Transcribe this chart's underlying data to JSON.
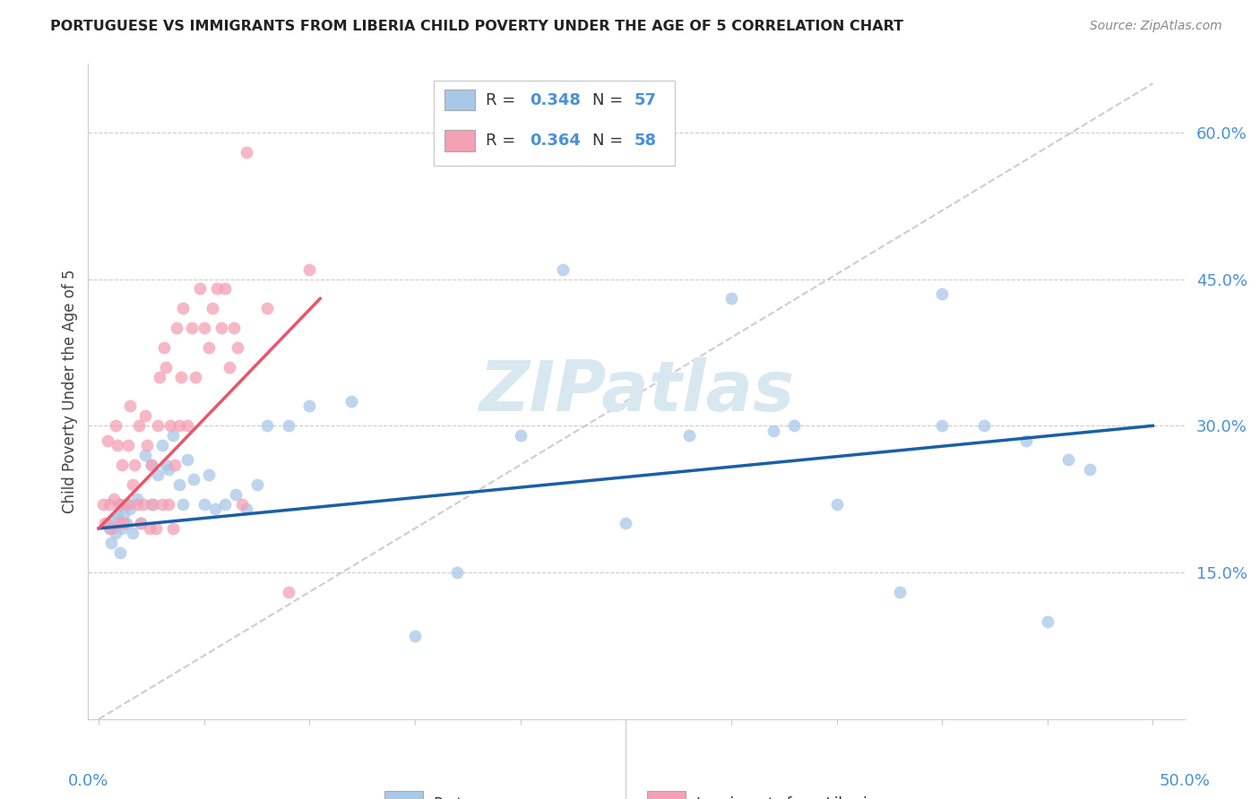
{
  "title": "PORTUGUESE VS IMMIGRANTS FROM LIBERIA CHILD POVERTY UNDER THE AGE OF 5 CORRELATION CHART",
  "source": "Source: ZipAtlas.com",
  "ylabel": "Child Poverty Under the Age of 5",
  "color_blue": "#a8c8e8",
  "color_pink": "#f4a0b5",
  "color_blue_line": "#1a5fa8",
  "color_pink_line": "#e8566a",
  "color_diag": "#c8c8c8",
  "color_axis_blue": "#4a90d9",
  "watermark_color": "#d8e8f0",
  "portuguese_x": [
    0.4,
    0.5,
    0.6,
    0.7,
    0.8,
    0.9,
    1.0,
    1.0,
    1.1,
    1.2,
    1.3,
    1.4,
    1.5,
    1.6,
    1.8,
    2.0,
    2.2,
    2.5,
    2.5,
    2.8,
    3.0,
    3.2,
    3.3,
    3.5,
    3.8,
    4.0,
    4.2,
    4.5,
    5.0,
    5.2,
    5.5,
    6.0,
    6.5,
    7.0,
    7.5,
    8.0,
    9.0,
    10.0,
    12.0,
    15.0,
    17.0,
    20.0,
    22.0,
    25.0,
    28.0,
    30.0,
    32.0,
    33.0,
    35.0,
    38.0,
    40.0,
    40.0,
    42.0,
    44.0,
    45.0,
    46.0,
    47.0
  ],
  "portuguese_y": [
    20.0,
    19.5,
    18.0,
    20.5,
    19.0,
    21.0,
    17.0,
    22.0,
    19.5,
    21.0,
    20.0,
    22.0,
    21.5,
    19.0,
    22.5,
    20.0,
    27.0,
    26.0,
    22.0,
    25.0,
    28.0,
    26.0,
    25.5,
    29.0,
    24.0,
    22.0,
    26.5,
    24.5,
    22.0,
    25.0,
    21.5,
    22.0,
    23.0,
    21.5,
    24.0,
    30.0,
    30.0,
    32.0,
    32.5,
    8.5,
    15.0,
    29.0,
    46.0,
    20.0,
    29.0,
    43.0,
    29.5,
    30.0,
    22.0,
    13.0,
    30.0,
    43.5,
    30.0,
    28.5,
    10.0,
    26.5,
    25.5
  ],
  "liberia_x": [
    0.2,
    0.3,
    0.4,
    0.5,
    0.6,
    0.7,
    0.8,
    0.9,
    1.0,
    1.0,
    1.1,
    1.2,
    1.3,
    1.4,
    1.5,
    1.6,
    1.7,
    1.8,
    1.9,
    2.0,
    2.1,
    2.2,
    2.3,
    2.4,
    2.5,
    2.6,
    2.7,
    2.8,
    2.9,
    3.0,
    3.1,
    3.2,
    3.3,
    3.4,
    3.5,
    3.6,
    3.7,
    3.8,
    3.9,
    4.0,
    4.2,
    4.4,
    4.6,
    4.8,
    5.0,
    5.2,
    5.4,
    5.6,
    5.8,
    6.0,
    6.2,
    6.4,
    6.6,
    6.8,
    7.0,
    8.0,
    9.0,
    10.0
  ],
  "liberia_y": [
    22.0,
    20.0,
    28.5,
    22.0,
    19.5,
    22.5,
    30.0,
    28.0,
    20.0,
    22.0,
    26.0,
    20.0,
    22.0,
    28.0,
    32.0,
    24.0,
    26.0,
    22.0,
    30.0,
    20.0,
    22.0,
    31.0,
    28.0,
    19.5,
    26.0,
    22.0,
    19.5,
    30.0,
    35.0,
    22.0,
    38.0,
    36.0,
    22.0,
    30.0,
    19.5,
    26.0,
    40.0,
    30.0,
    35.0,
    42.0,
    30.0,
    40.0,
    35.0,
    44.0,
    40.0,
    38.0,
    42.0,
    44.0,
    40.0,
    44.0,
    36.0,
    40.0,
    38.0,
    22.0,
    58.0,
    42.0,
    13.0,
    46.0
  ]
}
